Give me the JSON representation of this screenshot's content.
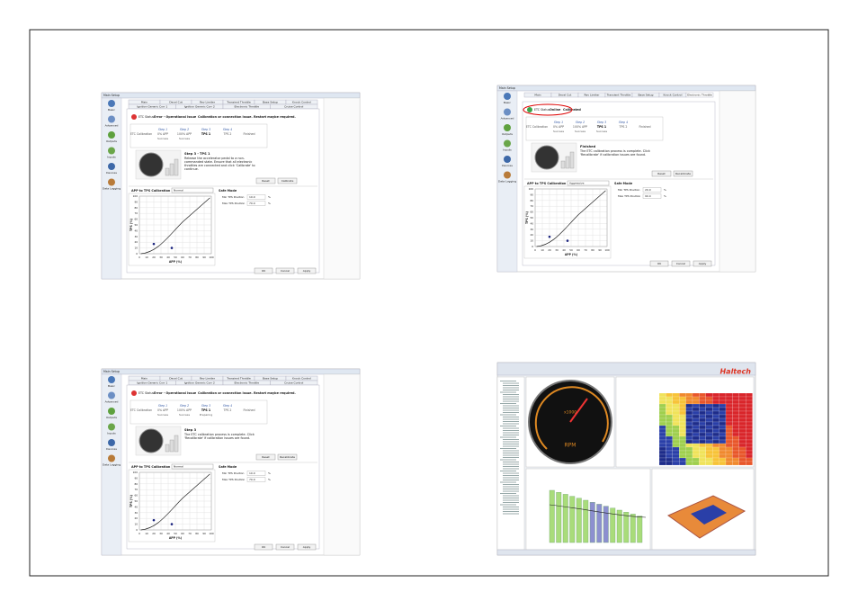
{
  "screenshots": [
    {
      "window_title": "Main Setup",
      "tabs_row1": [
        "Main",
        "Decel Cut",
        "Rev Limiter",
        "Transient Throttle",
        "Base Setup",
        "Knock Control"
      ],
      "tabs_row2": [
        "Ignition Generic Corr 1",
        "Ignition Generic Corr 2",
        "Electronic Throttle",
        "Cruise Control"
      ],
      "sidebar": [
        "Basic",
        "Advanced",
        "Outputs",
        "Inputs",
        "Devices",
        "Data Logging"
      ],
      "status": [
        "ETC Status",
        "Error - Operational Issue",
        "Calibration or connection issue. Restart maybe required."
      ],
      "steps": [
        {
          "head": "",
          "label": "ETC Calibration",
          "sub": ""
        },
        {
          "head": "Step 1",
          "label": "0% APP",
          "sub": "Success"
        },
        {
          "head": "Step 2",
          "label": "100% APP",
          "sub": "Success"
        },
        {
          "head": "Step 3",
          "label": "TPS 1",
          "sub": ""
        },
        {
          "head": "Step 4",
          "label": "TPS 2",
          "sub": ""
        },
        {
          "head": "",
          "label": "Finished",
          "sub": ""
        }
      ],
      "step_title": "Step 3 - TPS 1",
      "step_text": "Release the accelerator pedal to a non-commanded state. Ensure that all electronic throttles are connected and click 'Calibrate' to continue.",
      "step_buttons": [
        "Reset",
        "Calibrate"
      ],
      "calibration_label": "APP to TPS Calibration",
      "calibration_mode": "Normal",
      "safe_mode": {
        "title": "Safe Mode",
        "rows": [
          [
            "Min TPS Position",
            "10.0",
            "%"
          ],
          [
            "Max TPS Position",
            "70.0",
            "%"
          ]
        ]
      },
      "y_axis_label": "TPS (%)",
      "x_axis_label": "APP (%)",
      "axis_ticks": [
        "0",
        "10",
        "20",
        "30",
        "40",
        "50",
        "60",
        "70",
        "80",
        "90",
        "100"
      ],
      "buttons": [
        "OK",
        "Cancel",
        "Apply"
      ]
    },
    {
      "window_title": "Main Setup",
      "tabs_row1": [
        "Main",
        "Decel Cut",
        "Rev Limiter",
        "Transient Throttle",
        "Base Setup",
        "Knock Control",
        "Electronic Throttle"
      ],
      "tabs_row2": [],
      "sidebar": [
        "Basic",
        "Advanced",
        "Outputs",
        "Inputs",
        "Devices",
        "Data Logging"
      ],
      "status": [
        "ETC Status",
        "Online",
        "Calibrated"
      ],
      "steps": [
        {
          "head": "",
          "label": "ETC Calibration",
          "sub": ""
        },
        {
          "head": "Step 1",
          "label": "0% APP",
          "sub": "Success"
        },
        {
          "head": "Step 2",
          "label": "100% APP",
          "sub": "Success"
        },
        {
          "head": "Step 3",
          "label": "TPS 1",
          "sub": "Success"
        },
        {
          "head": "Step 4",
          "label": "TPS 2",
          "sub": ""
        },
        {
          "head": "",
          "label": "Finished",
          "sub": ""
        }
      ],
      "step_title": "Finished",
      "step_text": "The ETC calibration process is complete. Click 'Recalibrate' if calibration issues are found.",
      "step_buttons": [
        "Reset",
        "Recalibrate"
      ],
      "calibration_label": "APP to TPS Calibration",
      "calibration_mode": "Aggressive",
      "safe_mode": {
        "title": "Safe Mode",
        "rows": [
          [
            "Min TPS Position",
            "20.0",
            "%"
          ],
          [
            "Max TPS Position",
            "90.0",
            "%"
          ]
        ]
      },
      "y_axis_label": "TPS (%)",
      "x_axis_label": "APP (%)",
      "axis_ticks": [
        "0",
        "10",
        "20",
        "30",
        "40",
        "50",
        "60",
        "70",
        "80",
        "90",
        "100"
      ],
      "buttons": [
        "OK",
        "Cancel",
        "Apply"
      ]
    },
    {
      "window_title": "Main Setup",
      "tabs_row1": [
        "Main",
        "Decel Cut",
        "Rev Limiter",
        "Transient Throttle",
        "Base Setup",
        "Knock Control"
      ],
      "tabs_row2": [
        "Ignition Generic Corr 1",
        "Ignition Generic Corr 2",
        "Electronic Throttle",
        "Cruise Control"
      ],
      "sidebar": [
        "Basic",
        "Advanced",
        "Outputs",
        "Inputs",
        "Devices",
        "Data Logging"
      ],
      "status": [
        "ETC Status",
        "Error - Operational Issue",
        "Calibration or connection issue. Restart maybe required."
      ],
      "steps": [
        {
          "head": "",
          "label": "ETC Calibration",
          "sub": ""
        },
        {
          "head": "Step 1",
          "label": "0% APP",
          "sub": "Success"
        },
        {
          "head": "Step 2",
          "label": "100% APP",
          "sub": "Success"
        },
        {
          "head": "Step 3",
          "label": "TPS 1",
          "sub": "Preparing"
        },
        {
          "head": "Step 4",
          "label": "TPS 2",
          "sub": ""
        },
        {
          "head": "",
          "label": "Finished",
          "sub": ""
        }
      ],
      "step_title": "Step 3",
      "step_text": "The ETC calibration process is complete. Click 'Recalibrate' if calibration issues are found.",
      "step_buttons": [
        "Reset",
        "Recalibrate"
      ],
      "calibration_label": "APP to TPS Calibration",
      "calibration_mode": "Normal",
      "safe_mode": {
        "title": "Safe Mode",
        "rows": [
          [
            "Min TPS Position",
            "10.0",
            "%"
          ],
          [
            "Max TPS Position",
            "70.0",
            "%"
          ]
        ]
      },
      "y_axis_label": "TPS (%)",
      "x_axis_label": "APP (%)",
      "axis_ticks": [
        "0",
        "10",
        "20",
        "30",
        "40",
        "50",
        "60",
        "70",
        "80",
        "90",
        "100"
      ],
      "buttons": [
        "OK",
        "Cancel",
        "Apply"
      ]
    }
  ],
  "dashboard": {
    "brand": "Haltech",
    "gauge_unit": "x1000",
    "gauge_label": "RPM"
  }
}
